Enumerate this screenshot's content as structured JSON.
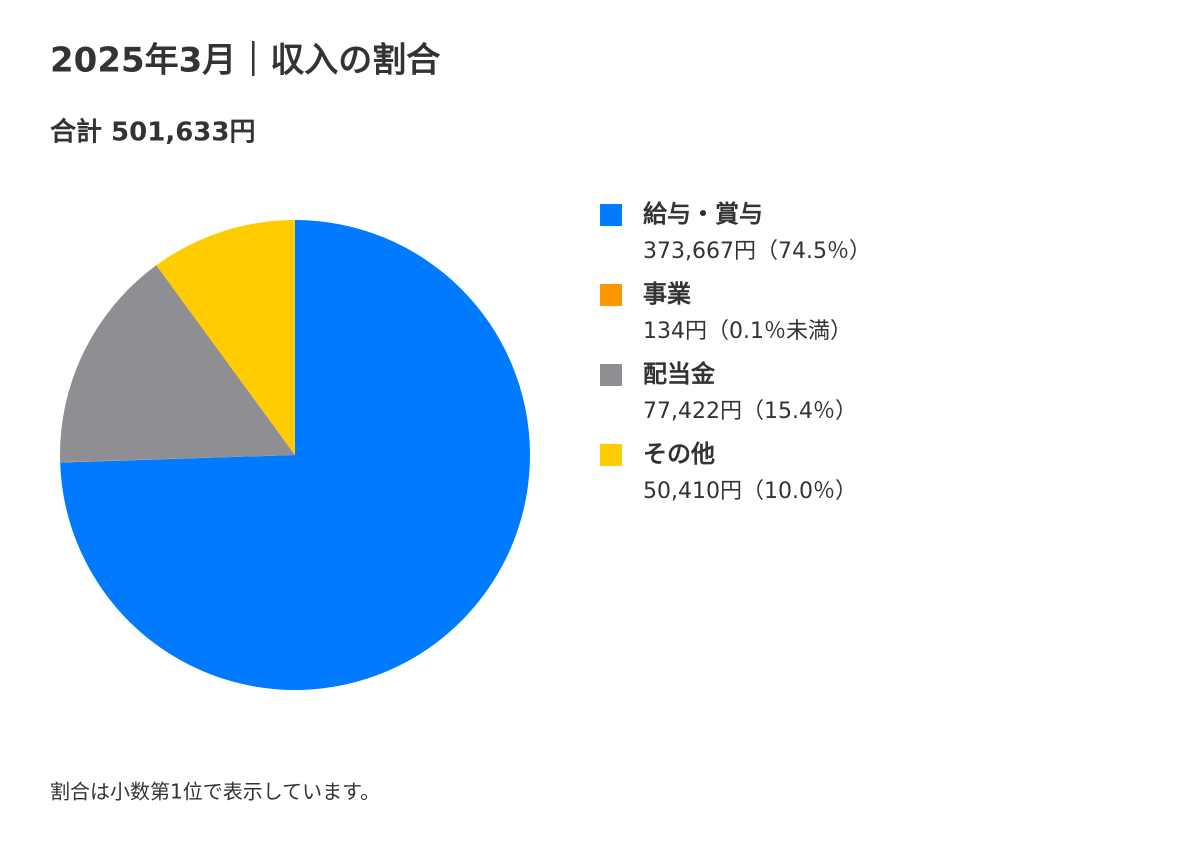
{
  "chart_data": {
    "type": "pie",
    "title": "2025年3月｜収入の割合",
    "subtitle": "合計 501,633円",
    "categories": [
      "給与・賞与",
      "事業",
      "配当金",
      "その他"
    ],
    "values": [
      373667,
      134,
      77422,
      50410
    ],
    "value_labels": [
      "373,667円（74.5％）",
      "134円（0.1％未満）",
      "77,422円（15.4％）",
      "50,410円（10.0％）"
    ],
    "colors": [
      "#007aff",
      "#ff9500",
      "#8e8e93",
      "#ffcc00"
    ],
    "legend": "right",
    "note": "割合は小数第1位で表示しています。"
  }
}
